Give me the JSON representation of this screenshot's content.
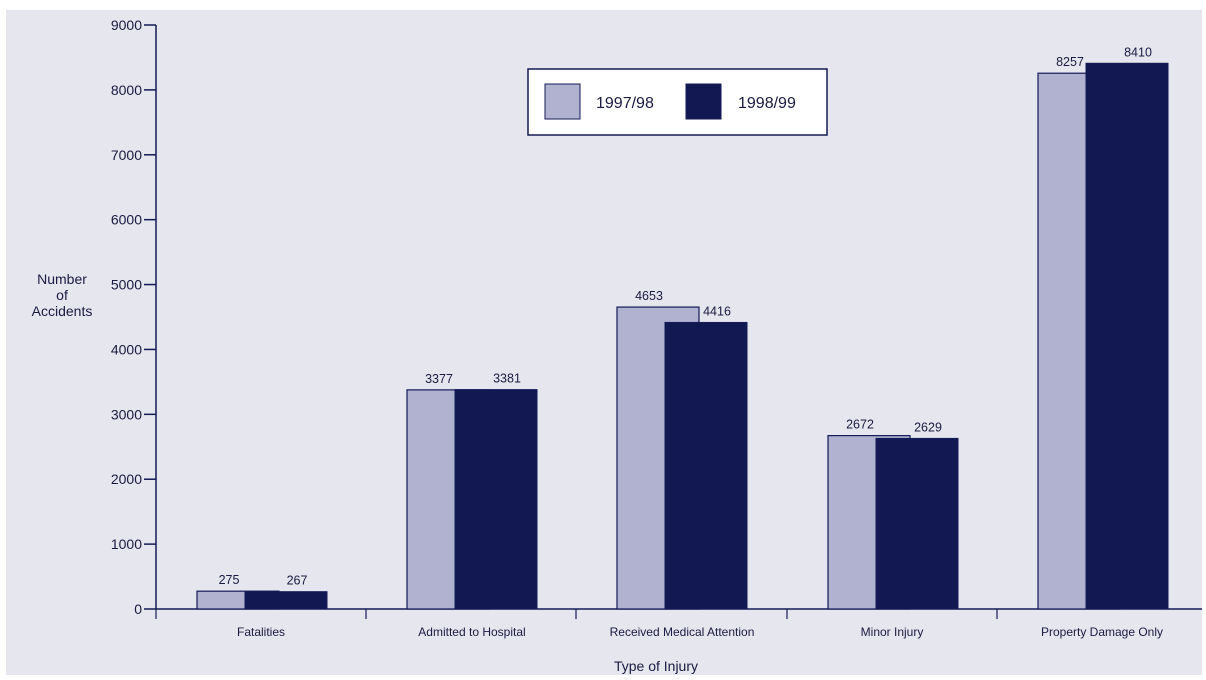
{
  "chart_data": {
    "type": "bar",
    "title": "",
    "xlabel": "Type of Injury",
    "ylabel_lines": [
      "Number",
      "of",
      "Accidents"
    ],
    "categories": [
      "Fatalities",
      "Admitted to Hospital",
      "Received Medical Attention",
      "Minor Injury",
      "Property Damage Only"
    ],
    "series": [
      {
        "name": "1997/98",
        "values": [
          275,
          3377,
          4653,
          2672,
          8257
        ],
        "color": "#b0b2d0"
      },
      {
        "name": "1998/99",
        "values": [
          267,
          3381,
          4416,
          2629,
          8410
        ],
        "color": "#121852"
      }
    ],
    "ylim": [
      0,
      9000
    ],
    "yticks": [
      0,
      1000,
      2000,
      3000,
      4000,
      5000,
      6000,
      7000,
      8000,
      9000
    ],
    "grid": false,
    "legend_position": "top-center",
    "colors": {
      "background": "#e6e6ee",
      "axis": "#141a55",
      "text": "#1a1a40"
    }
  }
}
